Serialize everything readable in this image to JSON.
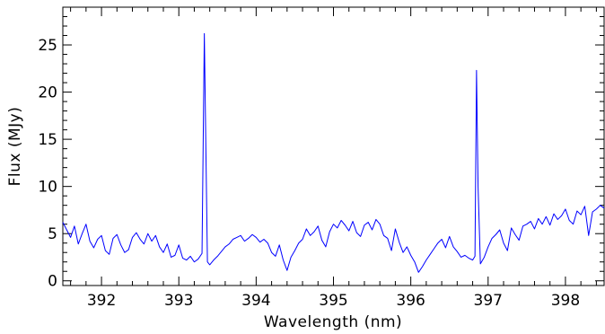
{
  "chart_data": {
    "type": "line",
    "title": "",
    "xlabel": "Wavelength (nm)",
    "ylabel": "Flux (MJy)",
    "xlim": [
      391.5,
      398.5
    ],
    "ylim": [
      -0.5,
      29
    ],
    "grid": false,
    "legend": "none",
    "xticks": [
      392,
      393,
      394,
      395,
      396,
      397,
      398
    ],
    "xtick_labels": [
      "392",
      "393",
      "394",
      "395",
      "396",
      "397",
      "398"
    ],
    "yticks": [
      0,
      5,
      10,
      15,
      20,
      25
    ],
    "ytick_labels": [
      "0",
      "5",
      "10",
      "15",
      "20",
      "25"
    ],
    "series": [
      {
        "color": "#0000ff",
        "x": [
          391.5,
          391.55,
          391.6,
          391.65,
          391.7,
          391.75,
          391.8,
          391.85,
          391.9,
          391.95,
          392.0,
          392.05,
          392.1,
          392.15,
          392.2,
          392.25,
          392.3,
          392.35,
          392.4,
          392.45,
          392.5,
          392.55,
          392.6,
          392.65,
          392.7,
          392.75,
          392.8,
          392.85,
          392.9,
          392.95,
          393.0,
          393.05,
          393.1,
          393.15,
          393.2,
          393.25,
          393.3,
          393.33,
          393.35,
          393.37,
          393.4,
          393.45,
          393.5,
          393.55,
          393.6,
          393.65,
          393.7,
          393.75,
          393.8,
          393.85,
          393.9,
          393.95,
          394.0,
          394.05,
          394.1,
          394.15,
          394.2,
          394.25,
          394.3,
          394.35,
          394.4,
          394.45,
          394.5,
          394.55,
          394.6,
          394.65,
          394.7,
          394.75,
          394.8,
          394.85,
          394.9,
          394.95,
          395.0,
          395.05,
          395.1,
          395.15,
          395.2,
          395.25,
          395.3,
          395.35,
          395.4,
          395.45,
          395.5,
          395.55,
          395.6,
          395.65,
          395.7,
          395.75,
          395.8,
          395.85,
          395.9,
          395.95,
          396.0,
          396.05,
          396.1,
          396.15,
          396.2,
          396.25,
          396.3,
          396.35,
          396.4,
          396.45,
          396.5,
          396.55,
          396.6,
          396.65,
          396.7,
          396.75,
          396.8,
          396.83,
          396.85,
          396.87,
          396.9,
          396.95,
          397.0,
          397.05,
          397.1,
          397.15,
          397.2,
          397.25,
          397.3,
          397.35,
          397.4,
          397.45,
          397.5,
          397.55,
          397.6,
          397.65,
          397.7,
          397.75,
          397.8,
          397.85,
          397.9,
          397.95,
          398.0,
          398.05,
          398.1,
          398.15,
          398.2,
          398.25,
          398.3,
          398.35,
          398.4,
          398.45,
          398.5
        ],
        "y": [
          6.2,
          5.4,
          4.6,
          5.8,
          3.9,
          5.0,
          6.0,
          4.2,
          3.5,
          4.4,
          4.8,
          3.2,
          2.8,
          4.5,
          4.9,
          3.8,
          3.0,
          3.3,
          4.6,
          5.1,
          4.4,
          3.9,
          5.0,
          4.2,
          4.8,
          3.6,
          3.0,
          3.9,
          2.5,
          2.7,
          3.8,
          2.4,
          2.2,
          2.6,
          2.0,
          2.3,
          2.9,
          26.2,
          14.0,
          2.0,
          1.7,
          2.2,
          2.6,
          3.1,
          3.6,
          3.9,
          4.4,
          4.6,
          4.8,
          4.2,
          4.5,
          4.9,
          4.6,
          4.1,
          4.4,
          4.0,
          3.0,
          2.6,
          3.8,
          2.2,
          1.1,
          2.5,
          3.2,
          4.0,
          4.4,
          5.5,
          4.8,
          5.2,
          5.8,
          4.3,
          3.6,
          5.2,
          6.0,
          5.6,
          6.4,
          5.9,
          5.3,
          6.3,
          5.1,
          4.7,
          5.9,
          6.2,
          5.4,
          6.5,
          6.0,
          4.8,
          4.5,
          3.2,
          5.5,
          4.1,
          3.0,
          3.6,
          2.7,
          2.0,
          0.9,
          1.5,
          2.2,
          2.8,
          3.4,
          4.0,
          4.4,
          3.5,
          4.7,
          3.6,
          3.1,
          2.5,
          2.7,
          2.4,
          2.2,
          2.6,
          22.3,
          10.0,
          1.8,
          2.5,
          3.6,
          4.5,
          4.9,
          5.4,
          4.0,
          3.2,
          5.6,
          4.9,
          4.3,
          5.8,
          6.0,
          6.3,
          5.5,
          6.6,
          6.0,
          6.8,
          5.9,
          7.1,
          6.5,
          6.9,
          7.6,
          6.4,
          6.0,
          7.4,
          7.0,
          7.9,
          4.8,
          7.3,
          7.6,
          8.0,
          7.7
        ]
      }
    ]
  }
}
